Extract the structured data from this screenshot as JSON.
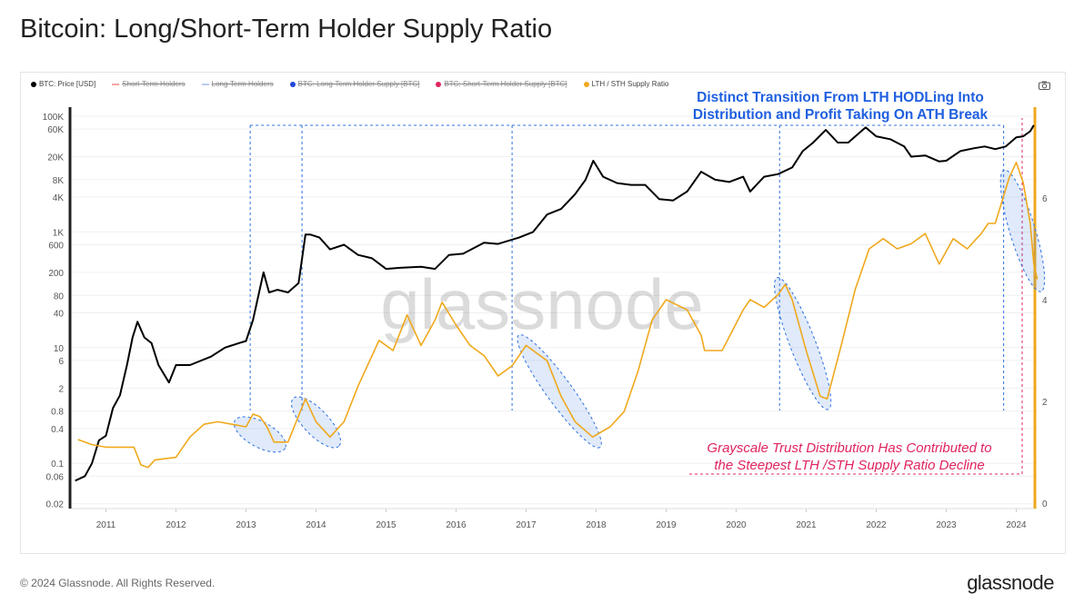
{
  "title": "Bitcoin: Long/Short-Term Holder Supply Ratio",
  "footer": "© 2024 Glassnode. All Rights Reserved.",
  "logo": "glassnode",
  "watermark": "glassnode",
  "camera_icon": "camera-icon",
  "legend": [
    {
      "label": "BTC: Price [USD]",
      "color": "#000000",
      "marker": "dot",
      "active": true
    },
    {
      "label": "Short-Term Holders",
      "color": "#f4a6a6",
      "marker": "line",
      "active": false
    },
    {
      "label": "Long-Term Holders",
      "color": "#b9cdf0",
      "marker": "line",
      "active": false
    },
    {
      "label": "BTC: Long-Term Holder Supply [BTC]",
      "color": "#2346d8",
      "marker": "dot",
      "active": false
    },
    {
      "label": "BTC: Short-Term Holder Supply [BTC]",
      "color": "#e0245e",
      "marker": "dot",
      "active": false
    },
    {
      "label": "LTH / STH Supply Ratio",
      "color": "#f0a81c",
      "marker": "dot",
      "active": true
    }
  ],
  "annotations": {
    "top": [
      "Distinct Transition From LTH HODLing Into",
      "Distribution and Profit Taking On ATH Break"
    ],
    "bottom": [
      "Grayscale Trust Distribution Has Contributed to",
      "the Steepest LTH /STH Supply Ratio Decline"
    ],
    "top_color": "#1f5fe0",
    "bottom_color": "#e0245e"
  },
  "chart_data": {
    "type": "line",
    "title": "Bitcoin: Long/Short-Term Holder Supply Ratio",
    "x_ticks": [
      "2011",
      "2012",
      "2013",
      "2014",
      "2015",
      "2016",
      "2017",
      "2018",
      "2019",
      "2020",
      "2021",
      "2022",
      "2023",
      "2024"
    ],
    "x_range": [
      2010.5,
      2024.3
    ],
    "y_left": {
      "scale": "log",
      "range": [
        0.02,
        100000
      ],
      "ticks": [
        "100K",
        "60K",
        "20K",
        "8K",
        "4K",
        "1K",
        "600",
        "200",
        "80",
        "40",
        "10",
        "6",
        "2",
        "0.8",
        "0.4",
        "0.1",
        "0.06",
        "0.02"
      ],
      "tick_values": [
        100000,
        60000,
        20000,
        8000,
        4000,
        1000,
        600,
        200,
        80,
        40,
        10,
        6,
        2,
        0.8,
        0.4,
        0.1,
        0.06,
        0.02
      ]
    },
    "y_right": {
      "scale": "linear",
      "range": [
        0,
        7.5
      ],
      "ticks": [
        "0",
        "2",
        "4",
        "6"
      ],
      "tick_values": [
        0,
        2,
        4,
        6
      ]
    },
    "series": [
      {
        "name": "BTC: Price [USD]",
        "axis": "left",
        "color": "#000000",
        "x": [
          2010.56,
          2010.7,
          2010.8,
          2010.9,
          2011.0,
          2011.1,
          2011.2,
          2011.3,
          2011.38,
          2011.45,
          2011.55,
          2011.65,
          2011.75,
          2011.9,
          2012.0,
          2012.2,
          2012.5,
          2012.7,
          2012.9,
          2013.0,
          2013.1,
          2013.25,
          2013.33,
          2013.45,
          2013.6,
          2013.75,
          2013.85,
          2013.92,
          2014.05,
          2014.2,
          2014.4,
          2014.6,
          2014.8,
          2015.0,
          2015.2,
          2015.5,
          2015.7,
          2015.9,
          2016.1,
          2016.4,
          2016.6,
          2016.9,
          2017.1,
          2017.3,
          2017.5,
          2017.7,
          2017.85,
          2017.96,
          2018.1,
          2018.3,
          2018.5,
          2018.7,
          2018.9,
          2019.1,
          2019.3,
          2019.5,
          2019.7,
          2019.9,
          2020.1,
          2020.2,
          2020.4,
          2020.6,
          2020.8,
          2020.95,
          2021.1,
          2021.28,
          2021.45,
          2021.6,
          2021.85,
          2022.0,
          2022.2,
          2022.4,
          2022.5,
          2022.7,
          2022.9,
          2023.0,
          2023.2,
          2023.4,
          2023.55,
          2023.7,
          2023.85,
          2024.0,
          2024.1,
          2024.2,
          2024.25
        ],
        "values": [
          0.05,
          0.06,
          0.1,
          0.25,
          0.3,
          0.9,
          1.5,
          5,
          15,
          28,
          15,
          12,
          5,
          2.5,
          5,
          5,
          7,
          10,
          12,
          13,
          30,
          200,
          90,
          100,
          90,
          130,
          900,
          900,
          800,
          500,
          600,
          400,
          350,
          230,
          240,
          250,
          230,
          400,
          420,
          650,
          620,
          800,
          1000,
          2000,
          2500,
          4500,
          8000,
          17000,
          9000,
          7000,
          6500,
          6500,
          3700,
          3500,
          5000,
          11000,
          8000,
          7300,
          9000,
          5000,
          9000,
          10000,
          13000,
          25000,
          35000,
          58000,
          35000,
          35000,
          64000,
          45000,
          40000,
          30000,
          20000,
          21000,
          16500,
          17000,
          25000,
          28000,
          30000,
          27000,
          30000,
          43000,
          45000,
          55000,
          70000
        ]
      },
      {
        "name": "LTH / STH Supply Ratio",
        "axis": "right",
        "color": "#f0a81c",
        "x": [
          2010.6,
          2010.8,
          2011.0,
          2011.4,
          2011.5,
          2011.6,
          2011.7,
          2012.0,
          2012.2,
          2012.4,
          2012.6,
          2012.8,
          2013.0,
          2013.1,
          2013.2,
          2013.3,
          2013.4,
          2013.6,
          2013.85,
          2014.0,
          2014.2,
          2014.4,
          2014.6,
          2014.9,
          2015.1,
          2015.3,
          2015.5,
          2015.7,
          2015.8,
          2016.0,
          2016.2,
          2016.4,
          2016.6,
          2016.8,
          2017.0,
          2017.3,
          2017.5,
          2017.7,
          2017.95,
          2018.2,
          2018.4,
          2018.6,
          2018.8,
          2019.0,
          2019.3,
          2019.5,
          2019.55,
          2019.8,
          2020.1,
          2020.2,
          2020.4,
          2020.6,
          2020.7,
          2020.8,
          2021.0,
          2021.2,
          2021.3,
          2021.5,
          2021.7,
          2021.9,
          2022.1,
          2022.3,
          2022.5,
          2022.7,
          2022.9,
          2023.1,
          2023.3,
          2023.5,
          2023.6,
          2023.7,
          2023.9,
          2024.0,
          2024.1,
          2024.2,
          2024.25,
          2024.3
        ],
        "values": [
          1.25,
          1.15,
          1.1,
          1.1,
          0.75,
          0.7,
          0.85,
          0.9,
          1.3,
          1.55,
          1.6,
          1.55,
          1.5,
          1.75,
          1.7,
          1.5,
          1.2,
          1.2,
          2.05,
          1.6,
          1.3,
          1.6,
          2.3,
          3.2,
          3.0,
          3.7,
          3.1,
          3.6,
          3.95,
          3.5,
          3.1,
          2.9,
          2.5,
          2.7,
          3.1,
          2.8,
          2.1,
          1.6,
          1.3,
          1.5,
          1.8,
          2.6,
          3.6,
          4.0,
          3.8,
          3.3,
          3.0,
          3.0,
          3.8,
          4.0,
          3.85,
          4.1,
          4.3,
          4.0,
          3.0,
          2.1,
          2.05,
          3.1,
          4.2,
          5.0,
          5.2,
          5.0,
          5.1,
          5.3,
          4.7,
          5.2,
          5.0,
          5.3,
          5.5,
          5.5,
          6.4,
          6.7,
          6.3,
          5.5,
          4.7,
          4.4
        ]
      }
    ],
    "event_lines_years": [
      2013.06,
      2013.8,
      2016.8,
      2020.62,
      2023.82
    ],
    "highlight_ranges": [
      [
        2013.0,
        2013.4
      ],
      [
        2013.8,
        2014.2
      ],
      [
        2017.0,
        2017.95
      ],
      [
        2020.65,
        2021.25
      ],
      [
        2023.88,
        2024.3
      ]
    ],
    "grid": true,
    "legend_position": "top-left"
  }
}
